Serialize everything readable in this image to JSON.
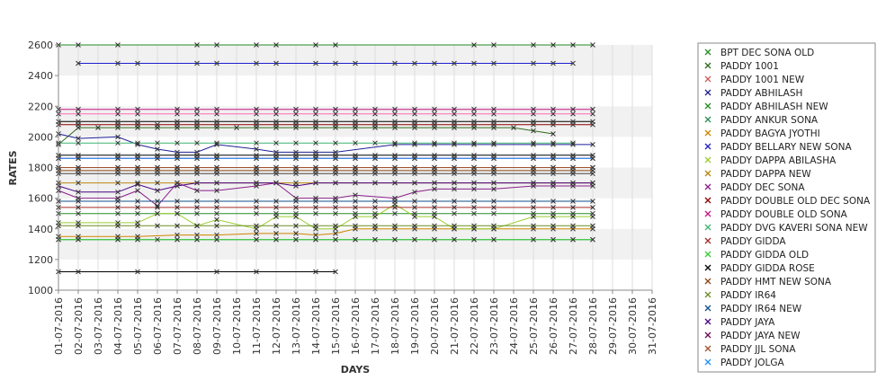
{
  "chart_data": {
    "type": "line",
    "xlabel": "DAYS",
    "ylabel": "RATES",
    "ylim": [
      1000,
      2600
    ],
    "yticks": [
      1000,
      1200,
      1400,
      1600,
      1800,
      2000,
      2200,
      2400,
      2600
    ],
    "grid": true,
    "legend_position": "right",
    "x": [
      "01-07-2016",
      "02-07-2016",
      "03-07-2016",
      "04-07-2016",
      "05-07-2016",
      "06-07-2016",
      "07-07-2016",
      "08-07-2016",
      "09-07-2016",
      "10-07-2016",
      "11-07-2016",
      "12-07-2016",
      "13-07-2016",
      "14-07-2016",
      "15-07-2016",
      "16-07-2016",
      "17-07-2016",
      "18-07-2016",
      "19-07-2016",
      "20-07-2016",
      "21-07-2016",
      "22-07-2016",
      "23-07-2016",
      "24-07-2016",
      "25-07-2016",
      "26-07-2016",
      "27-07-2016",
      "28-07-2016",
      "29-07-2016",
      "30-07-2016",
      "31-07-2016"
    ],
    "series": [
      {
        "name": "BPT DEC SONA OLD",
        "color": "#228b22",
        "values": [
          2600,
          2600,
          null,
          2600,
          null,
          null,
          null,
          2600,
          2600,
          null,
          2600,
          2600,
          null,
          2600,
          2600,
          null,
          null,
          null,
          null,
          null,
          null,
          2600,
          2600,
          null,
          2600,
          2600,
          2600,
          2600,
          null,
          null,
          null
        ]
      },
      {
        "name": "PADDY 1001",
        "color": "#2e6b1e",
        "values": [
          1950,
          2060,
          2060,
          2060,
          2060,
          2060,
          2060,
          2060,
          2060,
          2060,
          2060,
          2060,
          2060,
          2060,
          2060,
          2060,
          2060,
          2060,
          2060,
          2060,
          2060,
          2060,
          2060,
          2060,
          2040,
          2020,
          null,
          null,
          null,
          null,
          null
        ]
      },
      {
        "name": "PADDY 1001 NEW",
        "color": "#cd5c5c",
        "values": [
          1800,
          1800,
          null,
          1800,
          1800,
          1800,
          1800,
          1800,
          1800,
          null,
          1800,
          1800,
          1800,
          1800,
          1800,
          1800,
          1800,
          1800,
          1800,
          1800,
          1800,
          1800,
          1800,
          null,
          1800,
          1800,
          1800,
          1800,
          null,
          null,
          null
        ]
      },
      {
        "name": "PADDY ABHILASH",
        "color": "#1e1e96",
        "values": [
          2020,
          1990,
          null,
          2000,
          1950,
          1920,
          1900,
          1900,
          1950,
          null,
          1920,
          1900,
          1900,
          1900,
          1900,
          null,
          null,
          1950,
          1950,
          1950,
          1950,
          1950,
          1950,
          null,
          1950,
          1950,
          1950,
          1950,
          null,
          null,
          null
        ]
      },
      {
        "name": "PADDY ABHILASH NEW",
        "color": "#228b22",
        "values": [
          1500,
          1500,
          null,
          1500,
          1500,
          1500,
          1500,
          1500,
          1500,
          null,
          1500,
          1500,
          1500,
          1500,
          1500,
          1500,
          1500,
          1500,
          1500,
          1500,
          1500,
          1500,
          1500,
          null,
          1500,
          1500,
          1500,
          1500,
          null,
          null,
          null
        ]
      },
      {
        "name": "PADDY ANKUR SONA",
        "color": "#2e8b57",
        "values": [
          1330,
          1330,
          null,
          1330,
          1330,
          null,
          1330,
          1330,
          1330,
          null,
          1330,
          1330,
          1330,
          1330,
          1330,
          1330,
          1330,
          1330,
          1330,
          1330,
          1330,
          1330,
          1330,
          null,
          1330,
          1330,
          1330,
          1330,
          null,
          null,
          null
        ]
      },
      {
        "name": "PADDY BAGYA JYOTHI",
        "color": "#cd8500",
        "values": [
          1350,
          1350,
          null,
          1350,
          1350,
          null,
          1360,
          1360,
          1360,
          null,
          1370,
          1370,
          1370,
          1360,
          1370,
          1400,
          1400,
          1400,
          1400,
          1400,
          1400,
          1400,
          1400,
          null,
          1400,
          1400,
          1400,
          1400,
          null,
          null,
          null
        ]
      },
      {
        "name": "PADDY BELLARY NEW SONA",
        "color": "#1e1ecd",
        "values": [
          null,
          2480,
          null,
          2480,
          2480,
          null,
          null,
          2480,
          2480,
          null,
          2480,
          2480,
          null,
          2480,
          2480,
          2480,
          null,
          2480,
          2480,
          2480,
          2480,
          2480,
          2480,
          null,
          2480,
          2480,
          2480,
          null,
          null,
          null,
          null
        ]
      },
      {
        "name": "PADDY DAPPA ABILASHA",
        "color": "#9acd32",
        "values": [
          1440,
          1440,
          null,
          1440,
          1440,
          1500,
          1500,
          1420,
          1460,
          null,
          1400,
          1480,
          1480,
          1400,
          1400,
          1480,
          1480,
          1560,
          1480,
          1480,
          1400,
          1400,
          1400,
          null,
          1480,
          1480,
          1480,
          1480,
          null,
          null,
          null
        ]
      },
      {
        "name": "PADDY DAPPA NEW",
        "color": "#b8860b",
        "values": [
          1700,
          1700,
          null,
          1700,
          1700,
          1700,
          1700,
          1700,
          1700,
          null,
          1700,
          1700,
          1700,
          1700,
          1700,
          1700,
          1700,
          1700,
          1700,
          1700,
          1700,
          1700,
          1700,
          null,
          1700,
          1700,
          1700,
          1700,
          null,
          null,
          null
        ]
      },
      {
        "name": "PADDY DEC SONA",
        "color": "#8b1e8b",
        "values": [
          1650,
          1600,
          null,
          1600,
          1650,
          1550,
          1700,
          1650,
          1650,
          null,
          1680,
          1700,
          1600,
          1600,
          1600,
          1620,
          null,
          1600,
          1640,
          1660,
          1660,
          1660,
          1660,
          null,
          1680,
          1680,
          1680,
          1680,
          null,
          null,
          null
        ]
      },
      {
        "name": "PADDY DOUBLE OLD DEC SONA",
        "color": "#8b0000",
        "values": [
          2080,
          2080,
          null,
          2080,
          2080,
          2080,
          2080,
          2080,
          2080,
          null,
          2080,
          2080,
          2080,
          2080,
          2080,
          2080,
          2080,
          2080,
          2080,
          2080,
          2080,
          2080,
          2080,
          null,
          2080,
          2080,
          2080,
          2080,
          null,
          null,
          null
        ]
      },
      {
        "name": "PADDY DOUBLE OLD SONA",
        "color": "#c71585",
        "values": [
          2180,
          2180,
          null,
          2180,
          2180,
          null,
          2180,
          2180,
          2180,
          null,
          2180,
          2180,
          2180,
          2180,
          2180,
          2180,
          2180,
          2180,
          2180,
          2180,
          2180,
          2180,
          2180,
          null,
          2180,
          2180,
          2180,
          2180,
          null,
          null,
          null
        ]
      },
      {
        "name": "PADDY DVG KAVERI SONA NEW",
        "color": "#3cb371",
        "values": [
          1960,
          1960,
          null,
          1960,
          1960,
          1960,
          1960,
          1960,
          1960,
          null,
          1960,
          1960,
          1960,
          1960,
          1960,
          1960,
          1960,
          1960,
          1960,
          1960,
          1960,
          1960,
          1960,
          null,
          1960,
          1960,
          1960,
          null,
          null,
          null,
          null
        ]
      },
      {
        "name": "PADDY GIDDA",
        "color": "#a52a2a",
        "values": [
          1540,
          1540,
          null,
          1540,
          1540,
          1540,
          1540,
          1540,
          1540,
          null,
          1540,
          1540,
          1540,
          1540,
          1540,
          1540,
          1540,
          1540,
          1540,
          1540,
          1540,
          1540,
          1540,
          null,
          1540,
          1540,
          1540,
          1540,
          null,
          null,
          null
        ]
      },
      {
        "name": "PADDY GIDDA OLD",
        "color": "#32cd32",
        "values": [
          1330,
          1330,
          null,
          1330,
          1330,
          1330,
          1330,
          1330,
          1330,
          null,
          1330,
          1330,
          1330,
          1330,
          1330,
          1330,
          1330,
          1330,
          1330,
          1330,
          1330,
          1330,
          1330,
          null,
          1330,
          1330,
          1330,
          1330,
          null,
          null,
          null
        ]
      },
      {
        "name": "PADDY GIDDA ROSE",
        "color": "#000000",
        "values": [
          1880,
          1880,
          null,
          1880,
          1880,
          1880,
          1880,
          1880,
          1880,
          null,
          1880,
          1880,
          1880,
          1880,
          1880,
          1880,
          1880,
          1880,
          1880,
          1880,
          1880,
          1880,
          1880,
          null,
          1880,
          1880,
          1880,
          1880,
          null,
          null,
          null
        ]
      },
      {
        "name": "PADDY HMT NEW SONA",
        "color": "#8b4513",
        "values": [
          1780,
          1780,
          null,
          1780,
          1780,
          1780,
          1780,
          1780,
          1780,
          null,
          1780,
          1780,
          1780,
          1780,
          1780,
          1780,
          1780,
          1780,
          1780,
          1780,
          1780,
          1780,
          1780,
          null,
          1780,
          1780,
          1780,
          1780,
          null,
          null,
          null
        ]
      },
      {
        "name": "PADDY IR64",
        "color": "#6b8e23",
        "values": [
          1420,
          1420,
          null,
          1420,
          1420,
          1420,
          1420,
          1420,
          1420,
          null,
          1420,
          1420,
          1420,
          1420,
          1420,
          1420,
          1420,
          1420,
          1420,
          1420,
          1420,
          1420,
          1420,
          null,
          1420,
          1420,
          1420,
          1420,
          null,
          null,
          null
        ]
      },
      {
        "name": "PADDY IR64 NEW",
        "color": "#104e8b",
        "values": [
          1580,
          1580,
          null,
          1580,
          1580,
          1580,
          1580,
          1580,
          1580,
          null,
          1580,
          1580,
          1580,
          1580,
          1580,
          1580,
          1580,
          1580,
          1580,
          1580,
          1580,
          1580,
          1580,
          null,
          1580,
          1580,
          1580,
          1580,
          null,
          null,
          null
        ]
      },
      {
        "name": "PADDY JAYA",
        "color": "#4b0082",
        "values": [
          1680,
          1640,
          null,
          1640,
          1690,
          1650,
          1680,
          1700,
          1700,
          null,
          1700,
          1700,
          1680,
          1700,
          1700,
          1700,
          1700,
          1700,
          1700,
          1700,
          1700,
          1700,
          1700,
          null,
          1700,
          1700,
          1700,
          1700,
          null,
          null,
          null
        ]
      },
      {
        "name": "PADDY JAYA NEW",
        "color": "#6a0a5a",
        "values": [
          1860,
          1860,
          null,
          1860,
          1860,
          1860,
          1860,
          1860,
          1860,
          null,
          1860,
          1860,
          1860,
          1860,
          1860,
          1860,
          1860,
          1860,
          1860,
          1860,
          1860,
          1860,
          1860,
          null,
          1860,
          1860,
          1860,
          1860,
          null,
          null,
          null
        ]
      },
      {
        "name": "PADDY JJL SONA",
        "color": "#a0522d",
        "values": [
          1800,
          1800,
          null,
          1800,
          1800,
          1800,
          1800,
          1800,
          1800,
          null,
          1800,
          1800,
          1800,
          1800,
          1800,
          1800,
          1800,
          1800,
          1800,
          1800,
          1800,
          1800,
          1800,
          null,
          1800,
          1800,
          1800,
          1800,
          null,
          null,
          null
        ]
      },
      {
        "name": "PADDY JOLGA",
        "color": "#1e90ff",
        "values": [
          1860,
          1860,
          null,
          1860,
          1860,
          1860,
          1860,
          1860,
          1860,
          null,
          1860,
          1860,
          1860,
          1860,
          1860,
          1860,
          1860,
          1860,
          1860,
          1860,
          1860,
          1860,
          1860,
          null,
          1860,
          1860,
          1860,
          1860,
          null,
          null,
          null
        ]
      },
      {
        "name": "",
        "color": "#000000",
        "values": [
          1120,
          1120,
          null,
          null,
          1120,
          null,
          null,
          null,
          1120,
          null,
          1120,
          null,
          null,
          1120,
          1120,
          null,
          null,
          null,
          null,
          null,
          null,
          null,
          null,
          null,
          null,
          null,
          null,
          null,
          null,
          null,
          null
        ]
      },
      {
        "name": "",
        "color": "#444444",
        "values": [
          1760,
          1760,
          null,
          1760,
          1760,
          1760,
          1760,
          1760,
          1760,
          null,
          1760,
          1760,
          1760,
          1760,
          1760,
          1760,
          1760,
          1760,
          1760,
          1760,
          1760,
          1760,
          1760,
          null,
          1760,
          1760,
          1760,
          1760,
          null,
          null,
          null
        ]
      },
      {
        "name": "",
        "color": "#ff69b4",
        "values": [
          2150,
          2150,
          null,
          2150,
          2150,
          null,
          2150,
          2150,
          2150,
          null,
          2150,
          2150,
          2150,
          2150,
          2150,
          2150,
          2150,
          2150,
          2150,
          2150,
          2150,
          2150,
          2150,
          null,
          2150,
          2150,
          2150,
          2150,
          null,
          null,
          null
        ]
      },
      {
        "name": "",
        "color": "#000000",
        "values": [
          2100,
          2100,
          null,
          2100,
          2100,
          null,
          2100,
          2100,
          2100,
          null,
          2100,
          2100,
          2100,
          2100,
          2100,
          2100,
          2100,
          2100,
          2100,
          2100,
          2100,
          2100,
          2100,
          null,
          2100,
          2100,
          2100,
          2100,
          null,
          null,
          null
        ]
      }
    ]
  }
}
